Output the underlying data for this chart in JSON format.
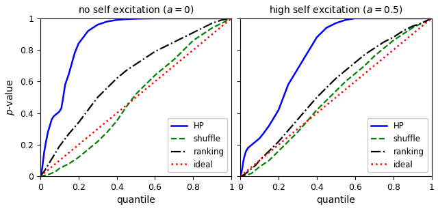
{
  "title1": "no self excitation ($a = 0$)",
  "title2": "high self excitation ($a = 0.5$)",
  "xlabel": "quantile",
  "ylabel": "$p$-value",
  "xlim": [
    0.0,
    1.0
  ],
  "ylim": [
    0.0,
    1.0
  ],
  "xticks": [
    0.0,
    0.2,
    0.4,
    0.6,
    0.8,
    1.0
  ],
  "yticks": [
    0.0,
    0.2,
    0.4,
    0.6,
    0.8,
    1.0
  ],
  "plot1": {
    "HP": {
      "x": [
        0.0,
        0.005,
        0.01,
        0.015,
        0.02,
        0.03,
        0.04,
        0.05,
        0.06,
        0.07,
        0.08,
        0.09,
        0.1,
        0.11,
        0.12,
        0.13,
        0.15,
        0.18,
        0.2,
        0.25,
        0.3,
        0.35,
        0.4,
        0.45,
        0.5,
        0.6,
        0.7,
        0.8,
        1.0
      ],
      "y": [
        0.0,
        0.02,
        0.05,
        0.1,
        0.15,
        0.22,
        0.28,
        0.32,
        0.36,
        0.38,
        0.39,
        0.4,
        0.41,
        0.43,
        0.5,
        0.58,
        0.65,
        0.78,
        0.84,
        0.92,
        0.96,
        0.98,
        0.99,
        0.995,
        0.998,
        1.0,
        1.0,
        1.0,
        1.0
      ]
    },
    "shuffle": {
      "x": [
        0.0,
        0.02,
        0.04,
        0.06,
        0.08,
        0.1,
        0.15,
        0.2,
        0.25,
        0.3,
        0.35,
        0.4,
        0.45,
        0.5,
        0.55,
        0.6,
        0.65,
        0.7,
        0.75,
        0.8,
        0.85,
        0.9,
        0.95,
        1.0
      ],
      "y": [
        0.0,
        0.005,
        0.01,
        0.02,
        0.03,
        0.05,
        0.08,
        0.12,
        0.17,
        0.22,
        0.28,
        0.35,
        0.44,
        0.52,
        0.58,
        0.64,
        0.69,
        0.74,
        0.8,
        0.86,
        0.9,
        0.94,
        0.97,
        1.0
      ]
    },
    "ranking": {
      "x": [
        0.0,
        0.02,
        0.04,
        0.06,
        0.08,
        0.1,
        0.15,
        0.2,
        0.25,
        0.3,
        0.35,
        0.4,
        0.45,
        0.5,
        0.55,
        0.6,
        0.65,
        0.7,
        0.75,
        0.8,
        0.85,
        0.9,
        0.95,
        1.0
      ],
      "y": [
        0.0,
        0.03,
        0.07,
        0.11,
        0.15,
        0.19,
        0.27,
        0.34,
        0.42,
        0.5,
        0.56,
        0.62,
        0.67,
        0.71,
        0.75,
        0.79,
        0.82,
        0.85,
        0.88,
        0.91,
        0.94,
        0.97,
        0.99,
        1.0
      ]
    },
    "ideal": {
      "x": [
        0.0,
        1.0
      ],
      "y": [
        0.0,
        1.0
      ]
    }
  },
  "plot2": {
    "HP": {
      "x": [
        0.0,
        0.005,
        0.01,
        0.015,
        0.02,
        0.03,
        0.04,
        0.05,
        0.06,
        0.07,
        0.08,
        0.09,
        0.1,
        0.12,
        0.15,
        0.18,
        0.2,
        0.25,
        0.3,
        0.35,
        0.4,
        0.45,
        0.5,
        0.55,
        0.6,
        0.7,
        0.8,
        1.0
      ],
      "y": [
        0.0,
        0.02,
        0.05,
        0.09,
        0.12,
        0.16,
        0.18,
        0.19,
        0.2,
        0.21,
        0.22,
        0.23,
        0.24,
        0.27,
        0.32,
        0.38,
        0.42,
        0.58,
        0.68,
        0.78,
        0.88,
        0.94,
        0.97,
        0.99,
        1.0,
        1.0,
        1.0,
        1.0
      ]
    },
    "shuffle": {
      "x": [
        0.0,
        0.02,
        0.04,
        0.06,
        0.08,
        0.1,
        0.15,
        0.2,
        0.25,
        0.3,
        0.35,
        0.4,
        0.45,
        0.5,
        0.55,
        0.6,
        0.65,
        0.7,
        0.75,
        0.8,
        0.85,
        0.9,
        0.95,
        1.0
      ],
      "y": [
        0.0,
        0.005,
        0.01,
        0.02,
        0.04,
        0.06,
        0.1,
        0.16,
        0.22,
        0.28,
        0.35,
        0.42,
        0.48,
        0.54,
        0.6,
        0.65,
        0.7,
        0.76,
        0.81,
        0.86,
        0.9,
        0.94,
        0.97,
        1.0
      ]
    },
    "ranking": {
      "x": [
        0.0,
        0.02,
        0.04,
        0.06,
        0.08,
        0.1,
        0.15,
        0.2,
        0.25,
        0.3,
        0.35,
        0.4,
        0.45,
        0.5,
        0.55,
        0.6,
        0.65,
        0.7,
        0.75,
        0.8,
        0.85,
        0.9,
        0.95,
        1.0
      ],
      "y": [
        0.0,
        0.01,
        0.03,
        0.05,
        0.07,
        0.1,
        0.16,
        0.22,
        0.29,
        0.36,
        0.43,
        0.5,
        0.56,
        0.62,
        0.67,
        0.72,
        0.77,
        0.81,
        0.85,
        0.88,
        0.92,
        0.95,
        0.97,
        1.0
      ]
    },
    "ideal": {
      "x": [
        0.0,
        1.0
      ],
      "y": [
        0.0,
        1.0
      ]
    }
  },
  "colors": {
    "HP": "#0000ff",
    "shuffle": "#008000",
    "ranking": "#000000",
    "ideal": "#ff0000"
  },
  "styles": {
    "HP": {
      "linestyle": "-",
      "linewidth": 1.8
    },
    "shuffle": {
      "linestyle": "--",
      "linewidth": 1.6
    },
    "ranking": {
      "linestyle": "-.",
      "linewidth": 1.6
    },
    "ideal": {
      "linestyle": ":",
      "linewidth": 1.8
    }
  },
  "legend_loc": "lower right",
  "legend_fontsize": 8.5
}
